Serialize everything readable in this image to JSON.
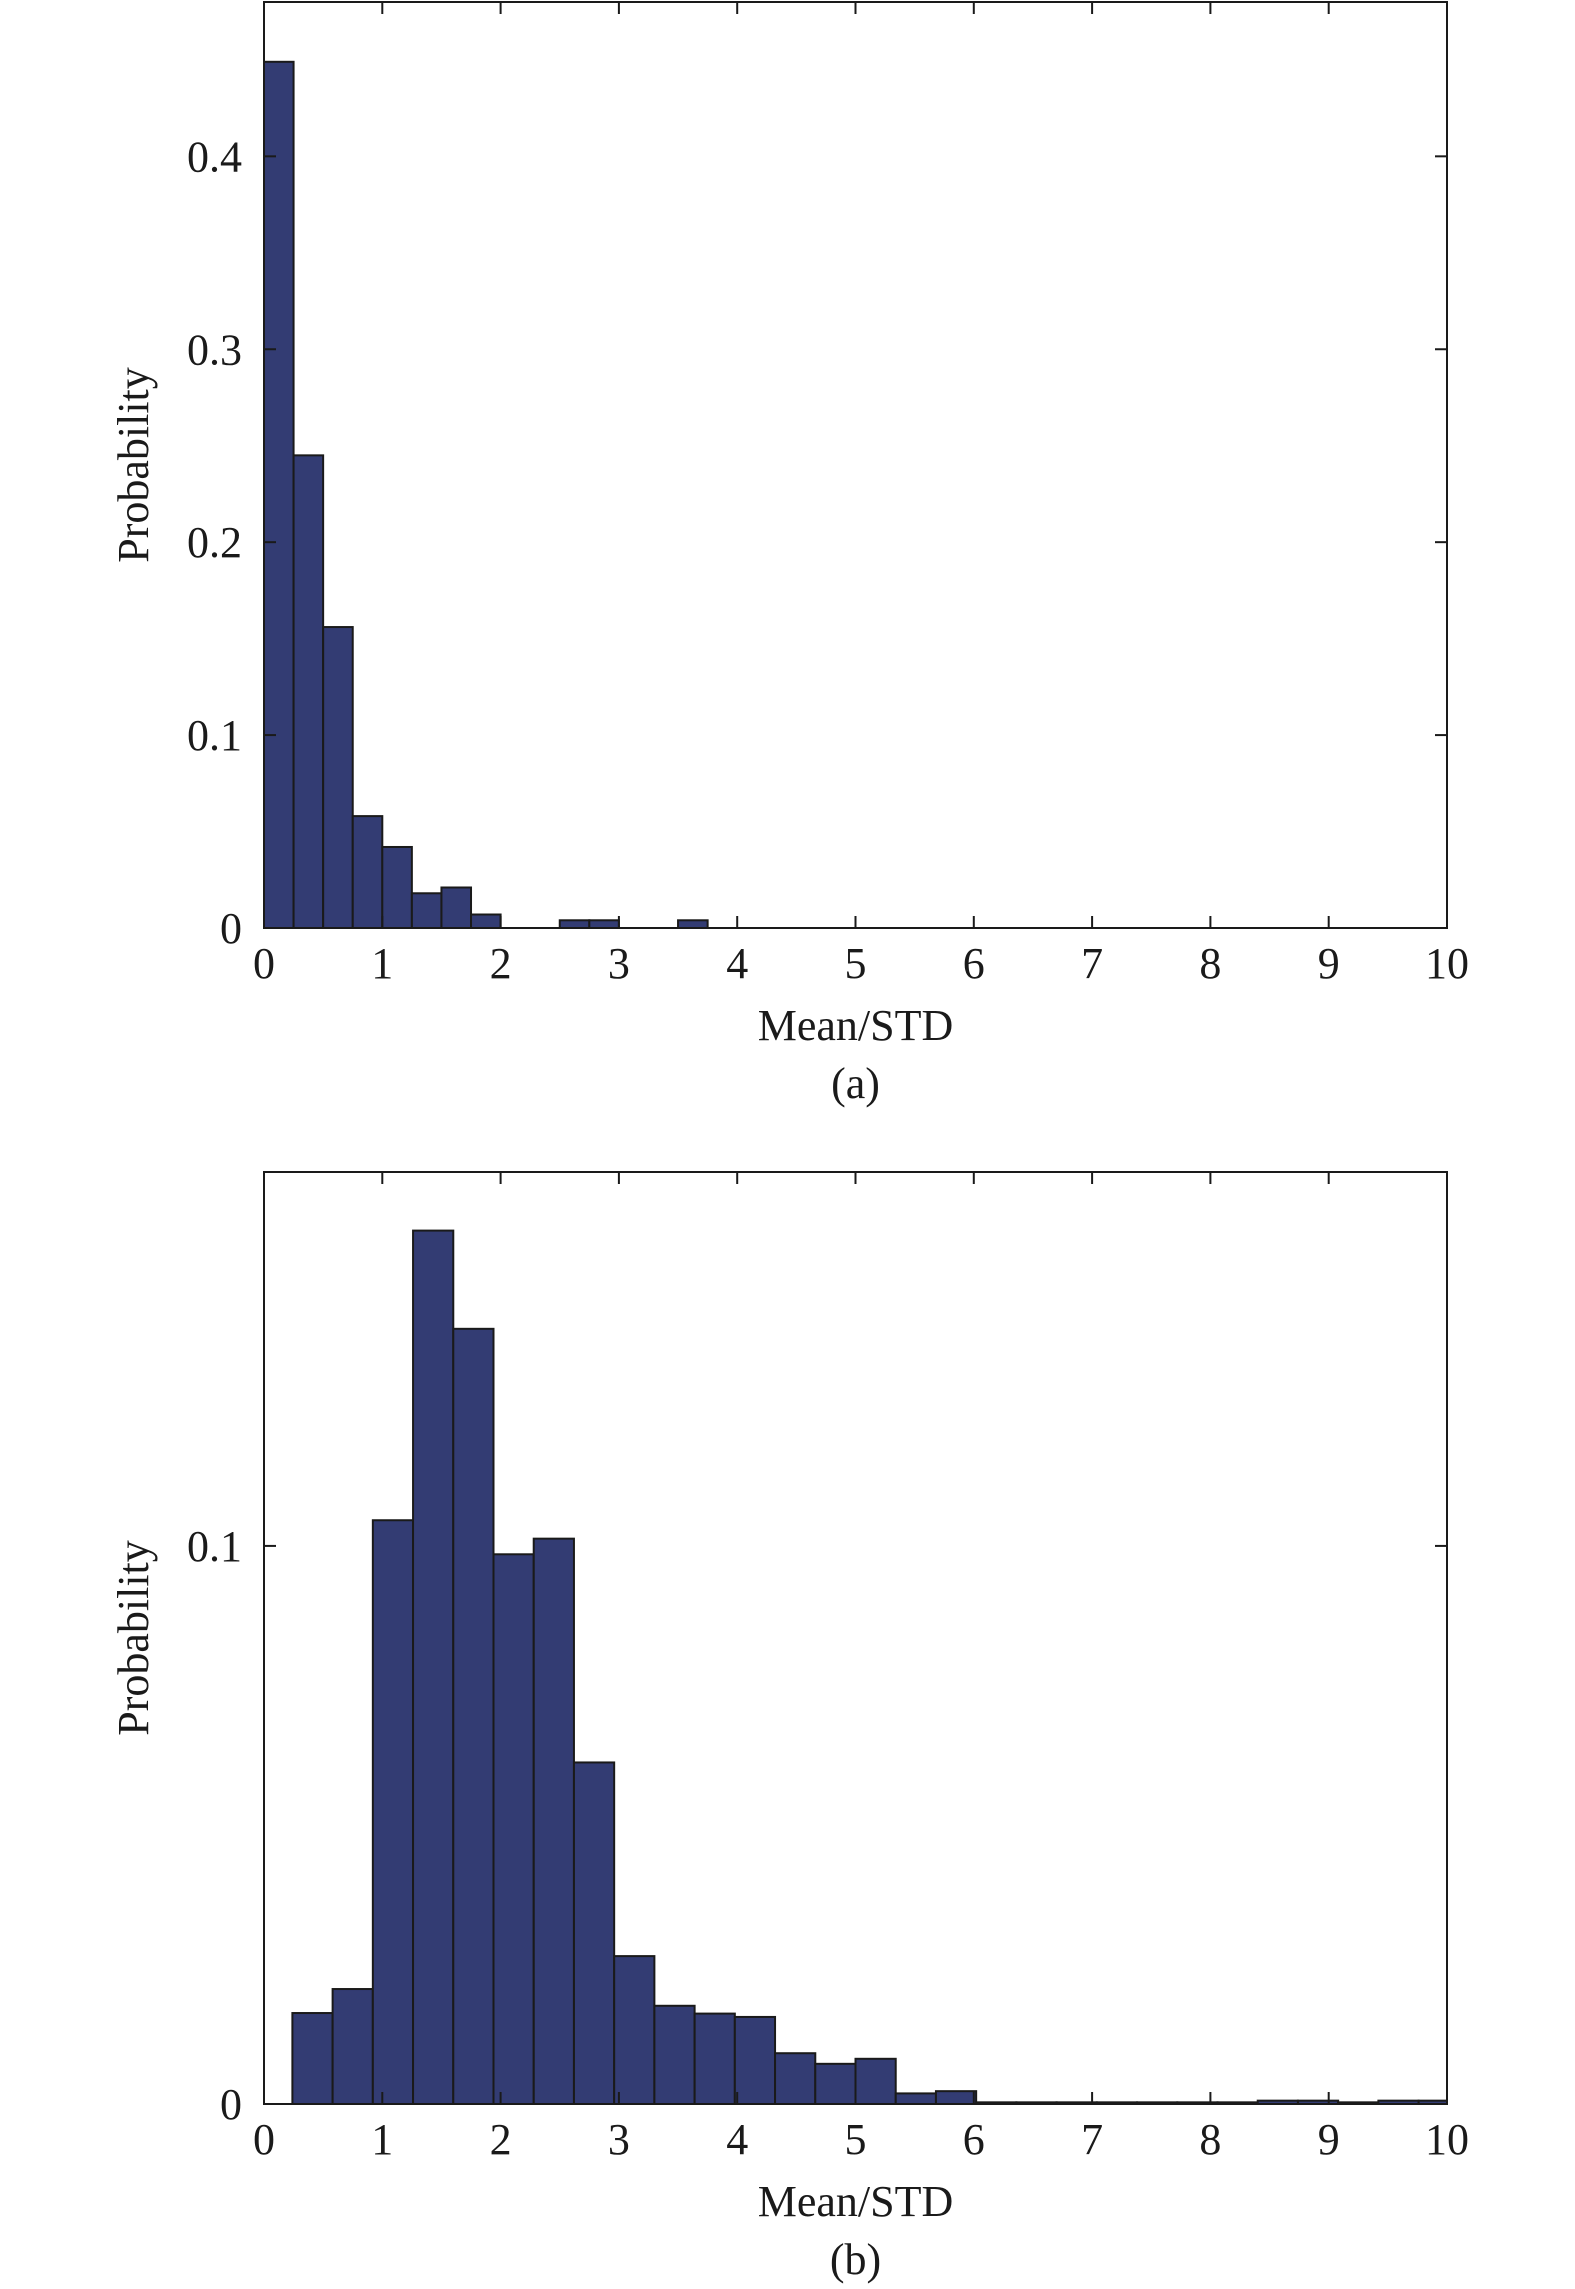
{
  "figure": {
    "bar_color": "#333c73",
    "edge_color": "#1a1a1a"
  },
  "chart_data": [
    {
      "type": "bar",
      "panel_label": "(a)",
      "xlabel": "Mean/STD",
      "ylabel": "Probability",
      "xlim": [
        0,
        10
      ],
      "ylim": [
        0,
        0.48
      ],
      "xticks": [
        "0",
        "1",
        "2",
        "3",
        "4",
        "5",
        "6",
        "7",
        "8",
        "9",
        "10"
      ],
      "yticks": [
        {
          "value": 0,
          "label": "0"
        },
        {
          "value": 0.1,
          "label": "0.1"
        },
        {
          "value": 0.2,
          "label": "0.2"
        },
        {
          "value": 0.3,
          "label": "0.3"
        },
        {
          "value": 0.4,
          "label": "0.4"
        }
      ],
      "grid": false,
      "bins": [
        {
          "x0": 0.0,
          "x1": 0.25,
          "value": 0.449
        },
        {
          "x0": 0.25,
          "x1": 0.5,
          "value": 0.245
        },
        {
          "x0": 0.5,
          "x1": 0.75,
          "value": 0.156
        },
        {
          "x0": 0.75,
          "x1": 1.0,
          "value": 0.058
        },
        {
          "x0": 1.0,
          "x1": 1.25,
          "value": 0.042
        },
        {
          "x0": 1.25,
          "x1": 1.5,
          "value": 0.018
        },
        {
          "x0": 1.5,
          "x1": 1.75,
          "value": 0.021
        },
        {
          "x0": 1.75,
          "x1": 2.0,
          "value": 0.007
        },
        {
          "x0": 2.0,
          "x1": 2.25,
          "value": 0.0
        },
        {
          "x0": 2.25,
          "x1": 2.5,
          "value": 0.0
        },
        {
          "x0": 2.5,
          "x1": 2.75,
          "value": 0.004
        },
        {
          "x0": 2.75,
          "x1": 3.0,
          "value": 0.004
        },
        {
          "x0": 3.0,
          "x1": 3.25,
          "value": 0.0
        },
        {
          "x0": 3.25,
          "x1": 3.5,
          "value": 0.0
        },
        {
          "x0": 3.5,
          "x1": 3.75,
          "value": 0.004
        }
      ]
    },
    {
      "type": "bar",
      "panel_label": "(b)",
      "xlabel": "Mean/STD",
      "ylabel": "Probability",
      "xlim": [
        0,
        10
      ],
      "ylim": [
        0,
        0.167
      ],
      "xticks": [
        "0",
        "1",
        "2",
        "3",
        "4",
        "5",
        "6",
        "7",
        "8",
        "9",
        "10"
      ],
      "yticks": [
        {
          "value": 0,
          "label": "0"
        },
        {
          "value": 0.1,
          "label": "0.1"
        }
      ],
      "grid": false,
      "bins": [
        {
          "x0": 0.24,
          "x1": 0.58,
          "value": 0.0163
        },
        {
          "x0": 0.58,
          "x1": 0.92,
          "value": 0.0206
        },
        {
          "x0": 0.92,
          "x1": 1.26,
          "value": 0.1046
        },
        {
          "x0": 1.26,
          "x1": 1.6,
          "value": 0.1565
        },
        {
          "x0": 1.6,
          "x1": 1.94,
          "value": 0.1389
        },
        {
          "x0": 1.94,
          "x1": 2.28,
          "value": 0.0985
        },
        {
          "x0": 2.28,
          "x1": 2.62,
          "value": 0.1013
        },
        {
          "x0": 2.62,
          "x1": 2.96,
          "value": 0.0612
        },
        {
          "x0": 2.96,
          "x1": 3.3,
          "value": 0.0265
        },
        {
          "x0": 3.3,
          "x1": 3.64,
          "value": 0.0176
        },
        {
          "x0": 3.64,
          "x1": 3.98,
          "value": 0.0162
        },
        {
          "x0": 3.98,
          "x1": 4.32,
          "value": 0.0156
        },
        {
          "x0": 4.32,
          "x1": 4.66,
          "value": 0.0091
        },
        {
          "x0": 4.66,
          "x1": 5.0,
          "value": 0.0072
        },
        {
          "x0": 5.0,
          "x1": 5.34,
          "value": 0.0081
        },
        {
          "x0": 5.34,
          "x1": 5.68,
          "value": 0.0019
        },
        {
          "x0": 5.68,
          "x1": 6.02,
          "value": 0.0023
        },
        {
          "x0": 6.02,
          "x1": 6.36,
          "value": 0.0003
        },
        {
          "x0": 6.36,
          "x1": 6.7,
          "value": 0.0003
        },
        {
          "x0": 6.7,
          "x1": 7.04,
          "value": 0.0003
        },
        {
          "x0": 7.04,
          "x1": 7.38,
          "value": 0.0003
        },
        {
          "x0": 7.38,
          "x1": 7.72,
          "value": 0.0003
        },
        {
          "x0": 7.72,
          "x1": 8.06,
          "value": 0.0003
        },
        {
          "x0": 8.06,
          "x1": 8.4,
          "value": 0.0003
        },
        {
          "x0": 8.4,
          "x1": 8.74,
          "value": 0.0006
        },
        {
          "x0": 8.74,
          "x1": 9.08,
          "value": 0.0006
        },
        {
          "x0": 9.08,
          "x1": 9.42,
          "value": 0.0003
        },
        {
          "x0": 9.42,
          "x1": 9.76,
          "value": 0.0006
        },
        {
          "x0": 9.76,
          "x1": 10.0,
          "value": 0.0006
        }
      ]
    }
  ]
}
